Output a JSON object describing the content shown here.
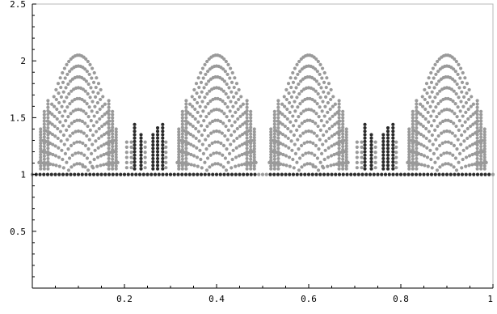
{
  "chart_data": {
    "type": "scatter",
    "title": "",
    "xlabel": "",
    "ylabel": "",
    "xlim": [
      0,
      1
    ],
    "ylim": [
      0,
      2.5
    ],
    "grid": false,
    "x_ticks": [
      {
        "value": 0.2,
        "label": "0.2"
      },
      {
        "value": 0.4,
        "label": "0.4"
      },
      {
        "value": 0.6,
        "label": "0.6"
      },
      {
        "value": 0.8,
        "label": "0.8"
      },
      {
        "value": 1.0,
        "label": "1"
      }
    ],
    "y_ticks": [
      {
        "value": 0.5,
        "label": "0.5"
      },
      {
        "value": 1.0,
        "label": "1"
      },
      {
        "value": 1.5,
        "label": "1.5"
      },
      {
        "value": 2.0,
        "label": "2"
      },
      {
        "value": 2.5,
        "label": "2.5"
      }
    ],
    "colors": {
      "light_points": "#9a9a9a",
      "dark_points": "#2a2a2a",
      "axis": "#000000"
    },
    "series": [
      {
        "kind": "arches",
        "color_key": "light_points",
        "periods": [
          0,
          0.5
        ],
        "arches": [
          {
            "x_start": 0.01,
            "x_end": 0.19,
            "peak_x": 0.1,
            "peak_y": 2.05,
            "levels": 11
          },
          {
            "x_start": 0.31,
            "x_end": 0.49,
            "peak_x": 0.4,
            "peak_y": 2.05,
            "levels": 11
          }
        ]
      },
      {
        "kind": "columns",
        "color_key": "dark_points",
        "periods": [
          0,
          0.5
        ],
        "columns": [
          {
            "x": 0.222,
            "y_top": 1.46
          },
          {
            "x": 0.236,
            "y_top": 1.36
          },
          {
            "x": 0.262,
            "y_top": 1.36
          },
          {
            "x": 0.272,
            "y_top": 1.44
          },
          {
            "x": 0.283,
            "y_top": 1.46
          }
        ]
      },
      {
        "kind": "baseline",
        "color_key": "dark_points",
        "y": 1.0,
        "x_start": 0.0,
        "x_end": 1.0,
        "count": 120
      }
    ]
  }
}
